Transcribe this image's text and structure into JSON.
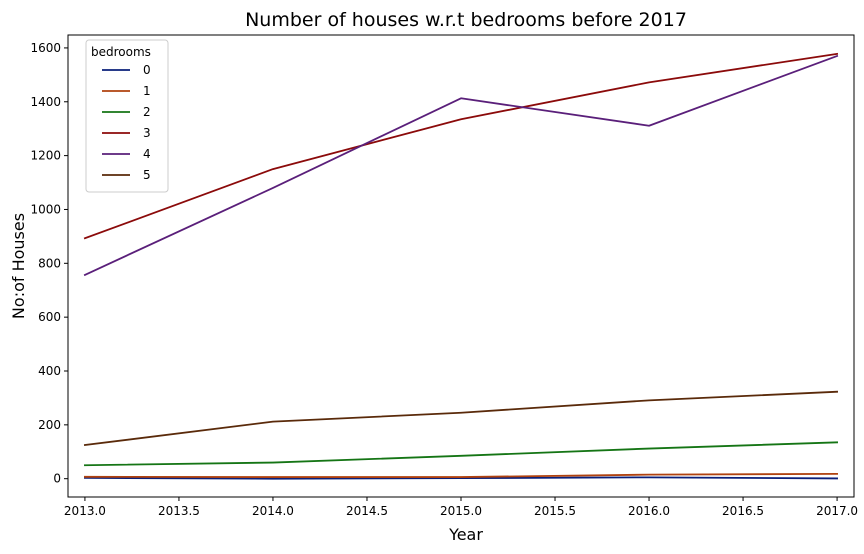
{
  "chart_data": {
    "type": "line",
    "title": "Number of houses w.r.t bedrooms before 2017",
    "xlabel": "Year",
    "ylabel": "No:of Houses",
    "xlim": [
      2012.91,
      2017.09
    ],
    "ylim": [
      -68,
      1648
    ],
    "xticks": [
      2013.0,
      2013.5,
      2014.0,
      2014.5,
      2015.0,
      2015.5,
      2016.0,
      2016.5,
      2017.0
    ],
    "xtick_labels": [
      "2013.0",
      "2013.5",
      "2014.0",
      "2014.5",
      "2015.0",
      "2015.5",
      "2016.0",
      "2016.5",
      "2017.0"
    ],
    "yticks": [
      0,
      200,
      400,
      600,
      800,
      1000,
      1200,
      1400,
      1600
    ],
    "ytick_labels": [
      "0",
      "200",
      "400",
      "600",
      "800",
      "1000",
      "1200",
      "1400",
      "1600"
    ],
    "grid": false,
    "legend": {
      "title": "bedrooms",
      "placement": "top-left"
    },
    "x": [
      2013,
      2014,
      2015,
      2016,
      2017
    ],
    "series": [
      {
        "name": "0",
        "color": "#0a1f7a",
        "values": [
          3,
          0,
          2,
          5,
          1
        ]
      },
      {
        "name": "1",
        "color": "#b0420f",
        "values": [
          7,
          6,
          6,
          15,
          18
        ]
      },
      {
        "name": "2",
        "color": "#157515",
        "values": [
          50,
          60,
          85,
          112,
          135
        ]
      },
      {
        "name": "3",
        "color": "#8b0a0a",
        "values": [
          893,
          1150,
          1335,
          1472,
          1578
        ]
      },
      {
        "name": "4",
        "color": "#5a1f7a",
        "values": [
          757,
          1080,
          1413,
          1311,
          1570
        ]
      },
      {
        "name": "5",
        "color": "#5a2a0a",
        "values": [
          125,
          212,
          245,
          291,
          323
        ]
      }
    ]
  }
}
